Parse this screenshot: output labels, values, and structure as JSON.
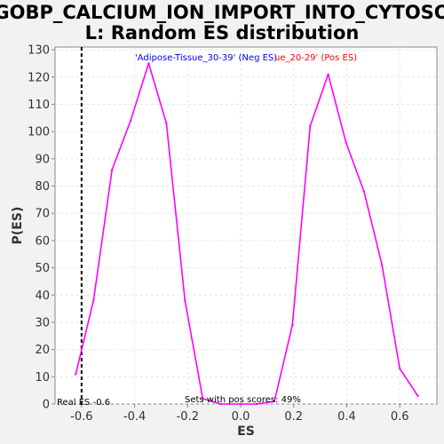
{
  "chart_data": {
    "type": "line",
    "title_line1": "GOBP_CALCIUM_ION_IMPORT_INTO_CYTOSO",
    "title_line2": "L: Random ES distribution",
    "xlabel": "ES",
    "ylabel": "P(ES)",
    "xlim": [
      -0.7,
      0.74
    ],
    "ylim": [
      0,
      131
    ],
    "x_ticks": [
      -0.6,
      -0.4,
      -0.2,
      0.0,
      0.2,
      0.4,
      0.6
    ],
    "x_tick_labels": [
      "-0.6",
      "-0.4",
      "-0.2",
      "0.0",
      "0.2",
      "0.4",
      "0.6"
    ],
    "y_ticks": [
      0,
      10,
      20,
      30,
      40,
      50,
      60,
      70,
      80,
      90,
      100,
      110,
      120,
      130
    ],
    "y_tick_labels": [
      "0",
      "10",
      "20",
      "30",
      "40",
      "50",
      "60",
      "70",
      "80",
      "90",
      "100",
      "110",
      "120",
      "130"
    ],
    "grid": true,
    "series": [
      {
        "color": "#ff00ff",
        "points": [
          {
            "x": -0.622,
            "y": 11
          },
          {
            "x": -0.555,
            "y": 38
          },
          {
            "x": -0.485,
            "y": 86
          },
          {
            "x": -0.415,
            "y": 104
          },
          {
            "x": -0.347,
            "y": 125
          },
          {
            "x": -0.28,
            "y": 103
          },
          {
            "x": -0.21,
            "y": 38
          },
          {
            "x": -0.143,
            "y": 2
          },
          {
            "x": -0.075,
            "y": 0
          },
          {
            "x": 0.0,
            "y": 0
          },
          {
            "x": 0.06,
            "y": 0
          },
          {
            "x": 0.127,
            "y": 1
          },
          {
            "x": 0.195,
            "y": 29
          },
          {
            "x": 0.262,
            "y": 102
          },
          {
            "x": 0.33,
            "y": 121
          },
          {
            "x": 0.397,
            "y": 96
          },
          {
            "x": 0.465,
            "y": 78
          },
          {
            "x": 0.533,
            "y": 51
          },
          {
            "x": 0.6,
            "y": 13
          },
          {
            "x": 0.668,
            "y": 3
          }
        ]
      }
    ],
    "real_es": -0.6,
    "annotations": {
      "neg_label": "'Adipose-Tissue_30-39' (Neg ES)",
      "pos_label": "ue_20-29' (Pos ES)",
      "neg_color": "#0000ff",
      "pos_color": "#ff0000",
      "sets_label": "Sets with pos scores: 49%",
      "real_es_label": "Real ES -0.6"
    }
  }
}
